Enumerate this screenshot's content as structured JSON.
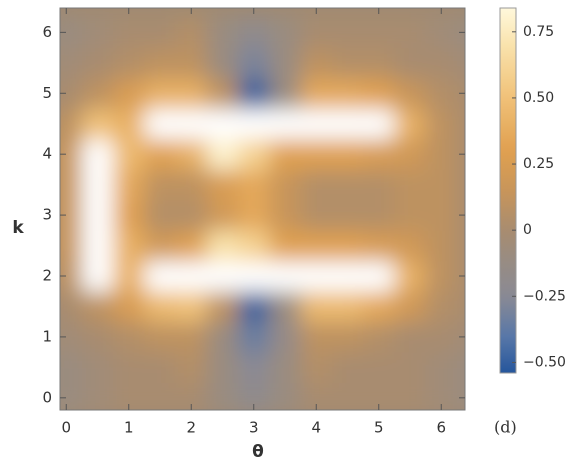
{
  "chart_data": {
    "type": "heatmap",
    "xlabel": "θ",
    "ylabel": "k",
    "annotation": "(d)",
    "x": [
      0,
      0.5,
      1,
      1.5,
      2,
      2.5,
      3,
      3.5,
      4,
      4.5,
      5,
      5.5,
      6,
      6.5
    ],
    "y": [
      0,
      0.5,
      1,
      1.5,
      2,
      2.5,
      3,
      3.5,
      4,
      4.5,
      5,
      5.5,
      6
    ],
    "z": [
      [
        -0.1,
        -0.05,
        0,
        0,
        0,
        -0.1,
        -0.2,
        -0.1,
        0,
        0,
        0,
        0,
        -0.05,
        -0.1
      ],
      [
        -0.1,
        -0.05,
        0,
        0,
        0.05,
        -0.1,
        -0.25,
        -0.1,
        0.05,
        0,
        0,
        0,
        -0.05,
        -0.1
      ],
      [
        -0.05,
        0,
        0.05,
        0.1,
        0.1,
        -0.1,
        -0.35,
        -0.15,
        0.1,
        0.1,
        0.05,
        0,
        0,
        -0.05
      ],
      [
        0,
        0.1,
        0.25,
        0.45,
        0.5,
        0.1,
        -0.5,
        -0.1,
        0.45,
        0.45,
        0.35,
        0.2,
        0.05,
        0
      ],
      [
        0.1,
        0.9,
        0.4,
        1.0,
        1.0,
        1.0,
        1.0,
        1.0,
        1.0,
        1.0,
        0.9,
        0.4,
        0.1,
        0
      ],
      [
        0.15,
        1.0,
        0.4,
        0.2,
        0.3,
        0.7,
        0.6,
        0.3,
        0.3,
        0.3,
        0.25,
        0.2,
        0.1,
        0
      ],
      [
        0.15,
        1.0,
        0.3,
        0.05,
        0.05,
        0.2,
        0.35,
        0.15,
        0.05,
        0.05,
        0.05,
        0.1,
        0.1,
        0
      ],
      [
        0.15,
        1.0,
        0.35,
        0.1,
        0.1,
        0.25,
        0.35,
        0.15,
        0.05,
        0.05,
        0.05,
        0.1,
        0.1,
        0
      ],
      [
        0.15,
        1.0,
        0.45,
        0.3,
        0.4,
        0.8,
        0.6,
        0.3,
        0.3,
        0.3,
        0.25,
        0.2,
        0.1,
        0
      ],
      [
        0.1,
        0.5,
        0.4,
        1.0,
        1.0,
        1.0,
        0.9,
        1.0,
        1.0,
        1.0,
        0.9,
        0.4,
        0.1,
        0
      ],
      [
        0,
        0.1,
        0.25,
        0.4,
        0.4,
        0.1,
        -0.5,
        -0.1,
        0.35,
        0.35,
        0.3,
        0.15,
        0.05,
        0
      ],
      [
        -0.05,
        0,
        0.05,
        0.1,
        0.1,
        -0.1,
        -0.3,
        -0.1,
        0.1,
        0.05,
        0.05,
        0,
        0,
        -0.05
      ],
      [
        -0.1,
        -0.05,
        0,
        0,
        0.05,
        -0.1,
        -0.2,
        -0.1,
        0,
        0,
        0,
        0,
        -0.05,
        -0.1
      ]
    ],
    "xlim": [
      -0.1,
      6.38
    ],
    "ylim": [
      -0.2,
      6.4
    ],
    "xticks": [
      0,
      1,
      2,
      3,
      4,
      5,
      6
    ],
    "yticks": [
      0,
      1,
      2,
      3,
      4,
      5,
      6
    ],
    "colorbar": {
      "lim": [
        -0.54,
        0.84
      ],
      "ticks": [
        0.75,
        {
          "value": 0.5,
          "label": "0.50"
        },
        0.25,
        0,
        {
          "value": -0.25,
          "label": "−0.25"
        },
        {
          "value": -0.5,
          "label": "−0.50"
        }
      ]
    }
  }
}
